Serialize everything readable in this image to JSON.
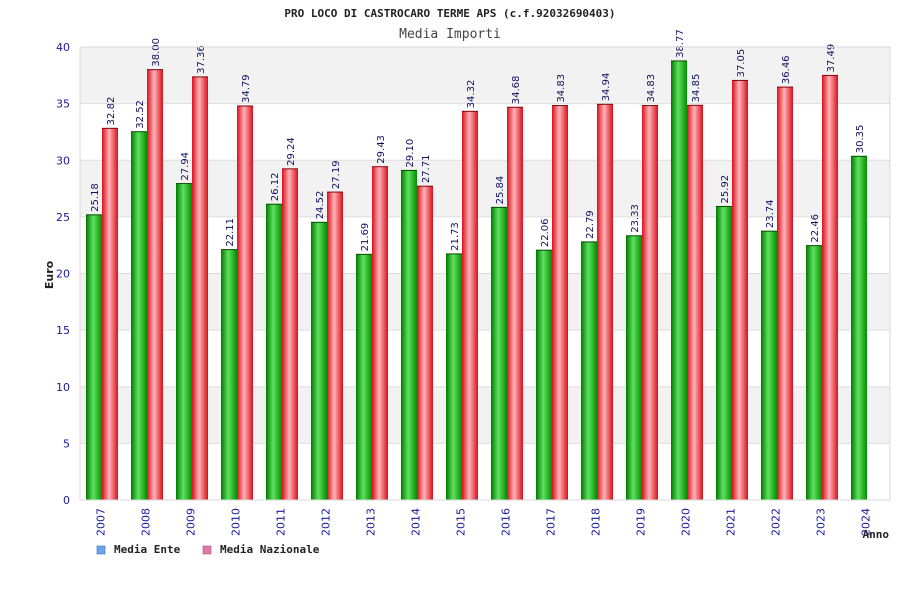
{
  "chart_data": {
    "type": "bar",
    "title": "PRO LOCO DI CASTROCARO TERME APS (c.f.92032690403)",
    "subtitle": "Media Importi",
    "xlabel": "Anno",
    "ylabel": "Euro",
    "ylim": [
      0,
      40
    ],
    "yticks": [
      "0",
      "5",
      "10",
      "15",
      "20",
      "25",
      "30",
      "35",
      "40"
    ],
    "categories": [
      "2007",
      "2008",
      "2009",
      "2010",
      "2011",
      "2012",
      "2013",
      "2014",
      "2015",
      "2016",
      "2017",
      "2018",
      "2019",
      "2020",
      "2021",
      "2022",
      "2023",
      "2024"
    ],
    "series": [
      {
        "name": "Media Ente",
        "color": "#00b000",
        "legend_color": "#6aa6e8",
        "labels": [
          "25.18",
          "32.52",
          "27.94",
          "22.11",
          "26.12",
          "24.52",
          "21.69",
          "29.10",
          "21.73",
          "25.84",
          "22.06",
          "22.79",
          "23.33",
          "38.77",
          "25.92",
          "23.74",
          "22.46",
          "30.35"
        ],
        "values": [
          25.18,
          32.52,
          27.94,
          22.11,
          26.12,
          24.52,
          21.69,
          29.1,
          21.73,
          25.84,
          22.06,
          22.79,
          23.33,
          38.77,
          25.92,
          23.74,
          22.46,
          30.35
        ]
      },
      {
        "name": "Media Nazionale",
        "color": "#e8202a",
        "legend_color": "#e07aa8",
        "labels": [
          "32.82",
          "38.00",
          "37.36",
          "34.79",
          "29.24",
          "27.19",
          "29.43",
          "27.71",
          "34.32",
          "34.68",
          "34.83",
          "34.94",
          "34.83",
          "34.85",
          "37.05",
          "36.46",
          "37.49",
          ""
        ],
        "values": [
          32.82,
          38.0,
          37.36,
          34.79,
          29.24,
          27.19,
          29.43,
          27.71,
          34.32,
          34.68,
          34.83,
          34.94,
          34.83,
          34.85,
          37.05,
          36.46,
          37.49,
          null
        ]
      }
    ],
    "grid": true,
    "legend": "bottom-left"
  }
}
